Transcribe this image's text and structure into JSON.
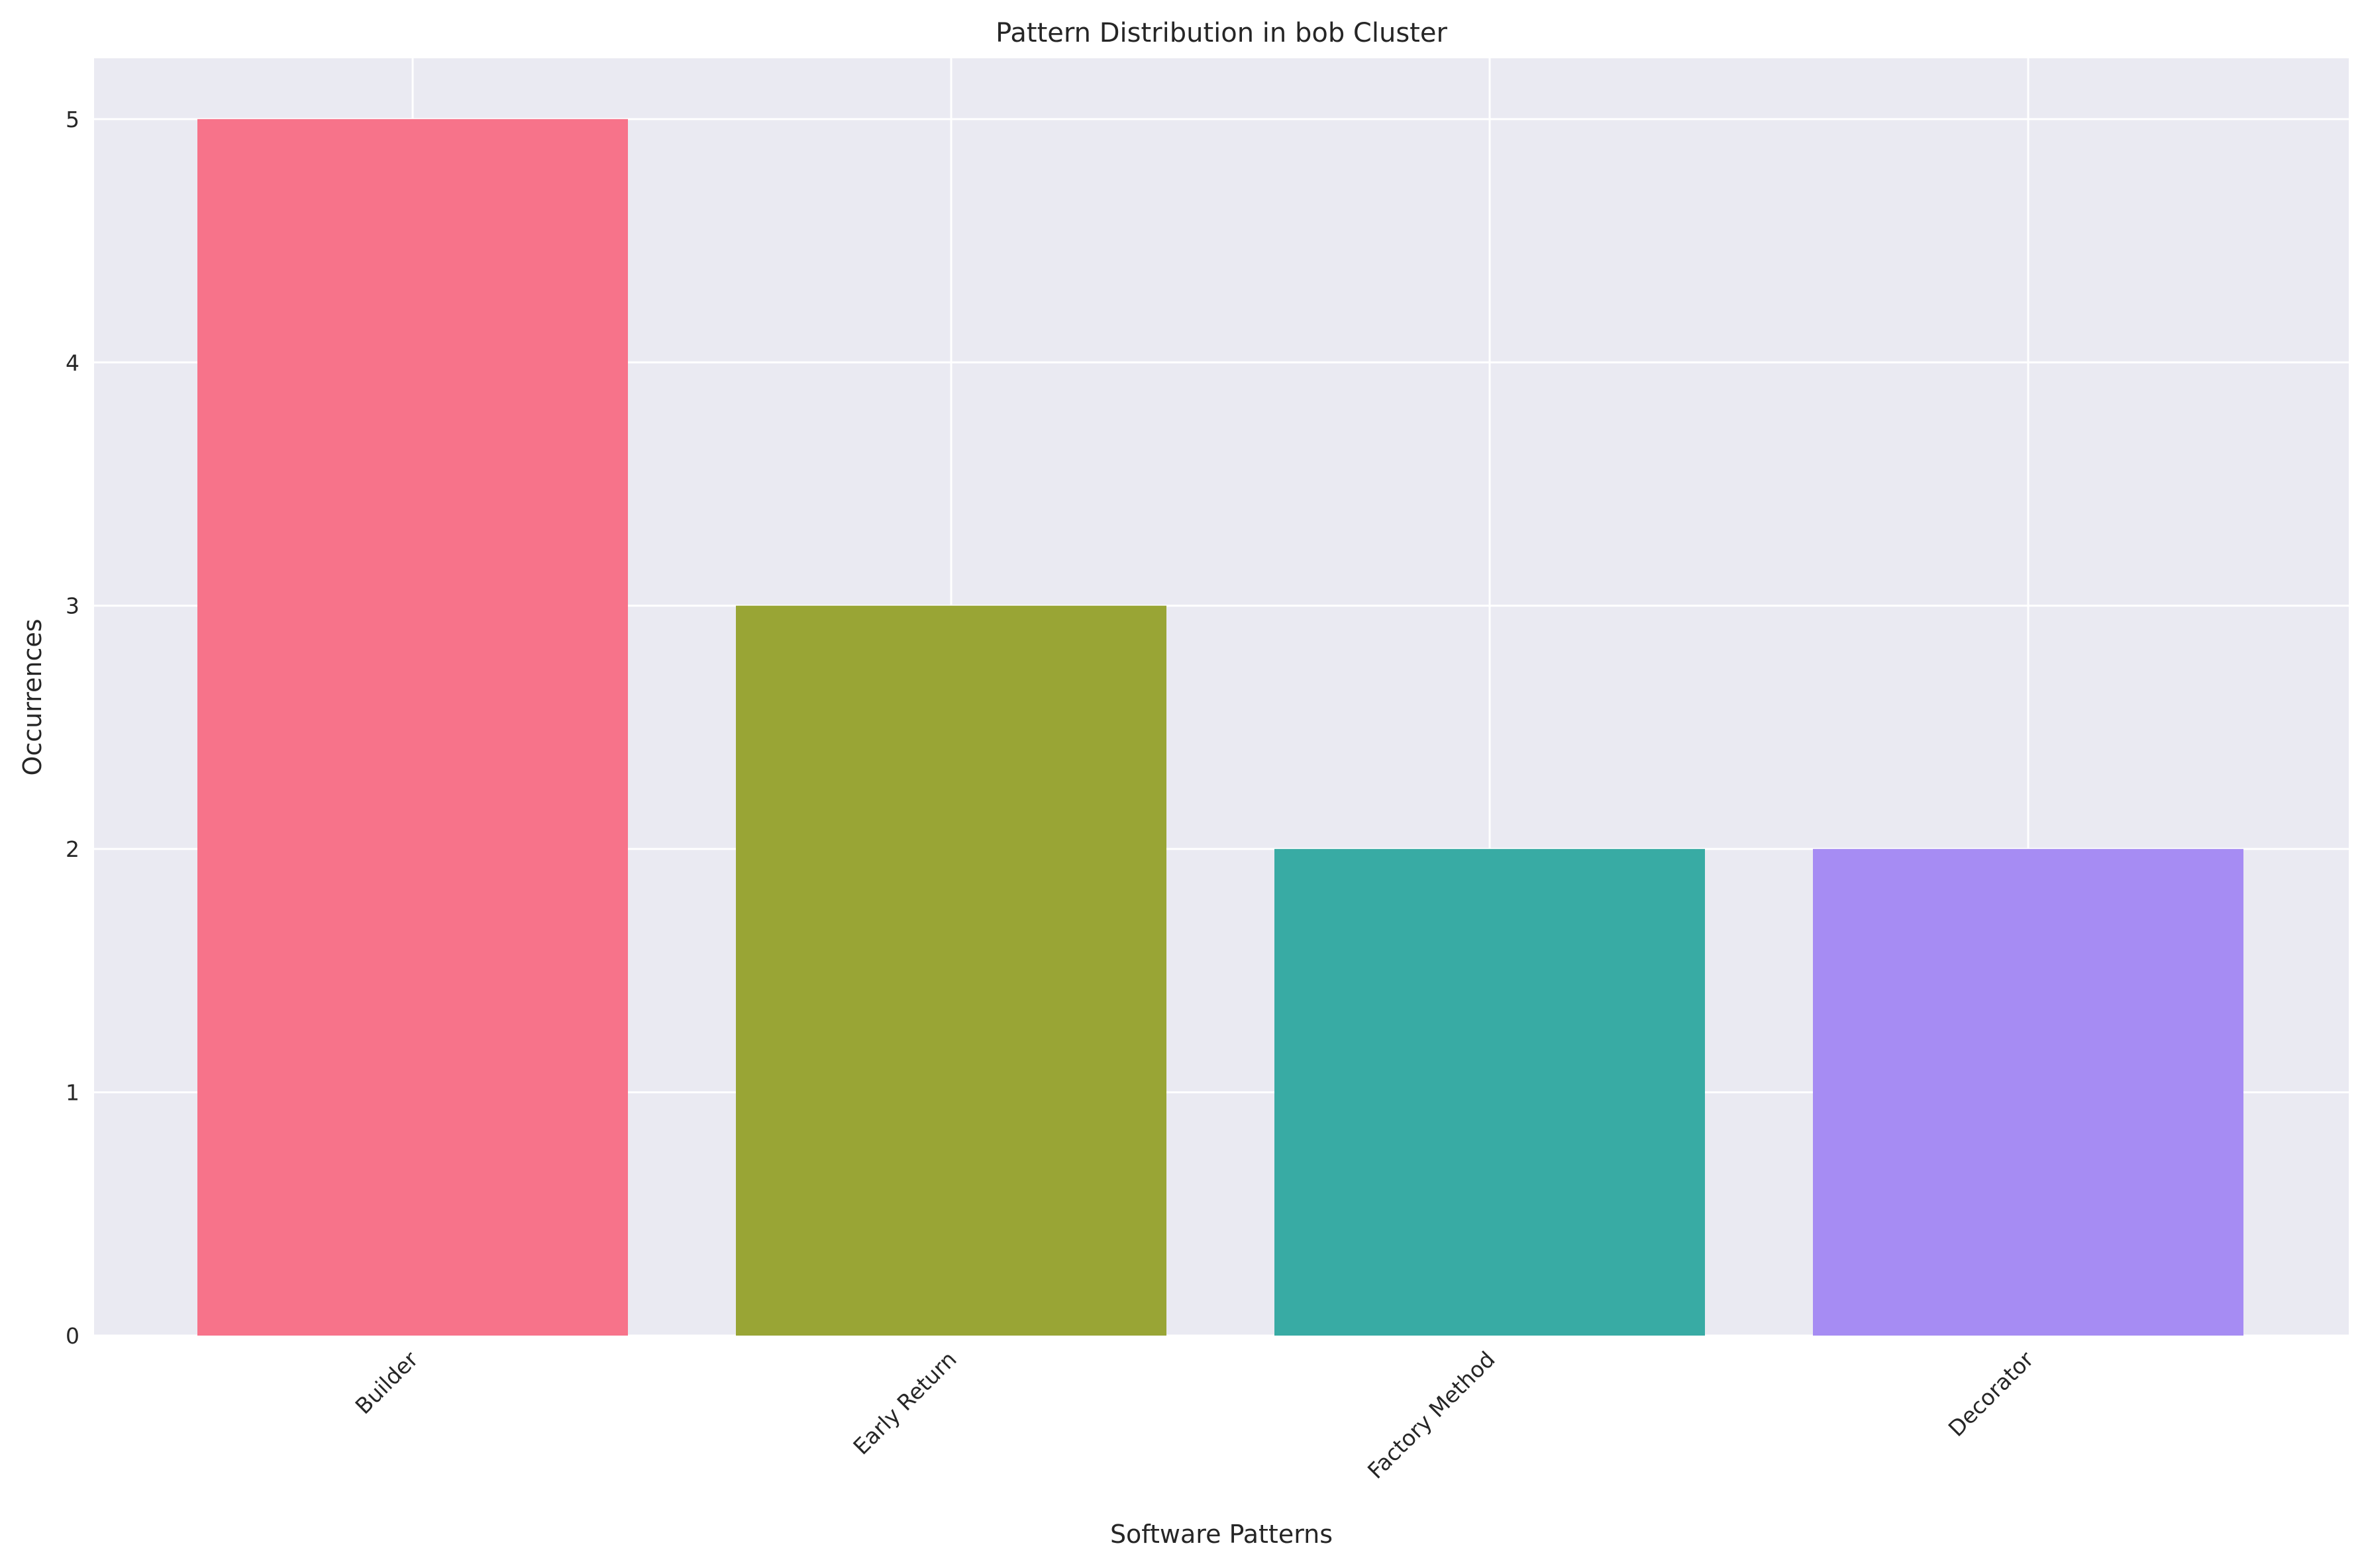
{
  "chart_data": {
    "type": "bar",
    "title": "Pattern Distribution in bob Cluster",
    "xlabel": "Software Patterns",
    "ylabel": "Occurrences",
    "categories": [
      "Builder",
      "Early Return",
      "Factory Method",
      "Decorator"
    ],
    "values": [
      5,
      3,
      2,
      2
    ],
    "colors": [
      "#f7738a",
      "#99a535",
      "#38aba4",
      "#a68cf3"
    ],
    "ylim": [
      0,
      5.25
    ],
    "yticks": [
      "0",
      "1",
      "2",
      "3",
      "4",
      "5"
    ],
    "grid": true,
    "background": "#eaeaf2"
  }
}
